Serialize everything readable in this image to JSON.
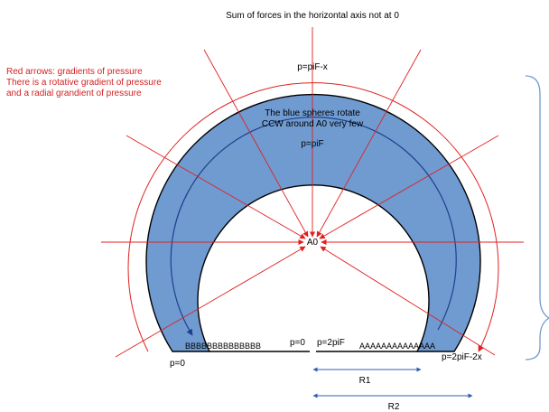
{
  "title": "Sum of forces in the horizontal axis not at 0",
  "legend": {
    "line1": "Red arrows: gradients of pressure",
    "line2": "There is a rotative gradient of pressure",
    "line3": "and a radial grandient of pressure"
  },
  "note": {
    "line1": "The blue spheres rotate",
    "line2": "CCW around A0 very few"
  },
  "labels": {
    "top_outer": "p=piF-x",
    "top_inner": "p=piF",
    "center": "A0",
    "gap_left": "p=0",
    "gap_right": "p=2piF",
    "left_bottom": "p=0",
    "right_bottom": "p=2piF-2x",
    "left_spheres": "BBBBBBBBBBBBBB",
    "right_spheres": "AAAAAAAAAAAAAA",
    "r1": "R1",
    "r2": "R2"
  },
  "colors": {
    "ring_fill": "#6f9bd1",
    "ring_stroke": "#000000",
    "arrow_red": "#e02020",
    "arrow_blue": "#1f3f8a",
    "brace": "#6f9bd1",
    "measure": "#2a5fb0"
  }
}
